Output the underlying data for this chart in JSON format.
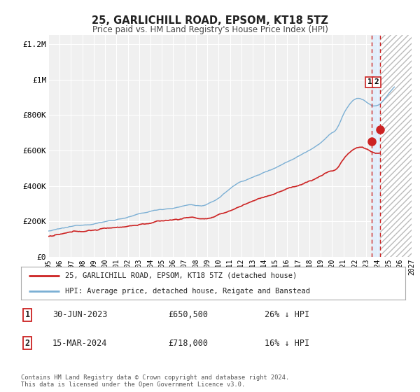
{
  "title": "25, GARLICHILL ROAD, EPSOM, KT18 5TZ",
  "subtitle": "Price paid vs. HM Land Registry's House Price Index (HPI)",
  "legend_line1": "25, GARLICHILL ROAD, EPSOM, KT18 5TZ (detached house)",
  "legend_line2": "HPI: Average price, detached house, Reigate and Banstead",
  "footnote": "Contains HM Land Registry data © Crown copyright and database right 2024.\nThis data is licensed under the Open Government Licence v3.0.",
  "sale1_date": "30-JUN-2023",
  "sale1_price": "£650,500",
  "sale1_hpi": "26% ↓ HPI",
  "sale2_date": "15-MAR-2024",
  "sale2_price": "£718,000",
  "sale2_hpi": "16% ↓ HPI",
  "sale1_x": 2023.5,
  "sale1_y": 650500,
  "sale2_x": 2024.2,
  "sale2_y": 718000,
  "vline1_x": 2023.5,
  "vline2_x": 2024.2,
  "hpi_end_x": 2025.5,
  "future_start_x": 2024.25,
  "xlim": [
    1995,
    2027
  ],
  "ylim": [
    0,
    1250000
  ],
  "yticks": [
    0,
    200000,
    400000,
    600000,
    800000,
    1000000,
    1200000
  ],
  "ytick_labels": [
    "£0",
    "£200K",
    "£400K",
    "£600K",
    "£800K",
    "£1M",
    "£1.2M"
  ],
  "xticks": [
    1995,
    1996,
    1997,
    1998,
    1999,
    2000,
    2001,
    2002,
    2003,
    2004,
    2005,
    2006,
    2007,
    2008,
    2009,
    2010,
    2011,
    2012,
    2013,
    2014,
    2015,
    2016,
    2017,
    2018,
    2019,
    2020,
    2021,
    2022,
    2023,
    2024,
    2025,
    2026,
    2027
  ],
  "hpi_color": "#7bafd4",
  "price_color": "#cc2222",
  "background_color": "#f0f0f0",
  "grid_color": "#ffffff",
  "vline_color": "#cc2222",
  "vfill_color": "#ddeeff",
  "hatch_color": "#cccccc"
}
